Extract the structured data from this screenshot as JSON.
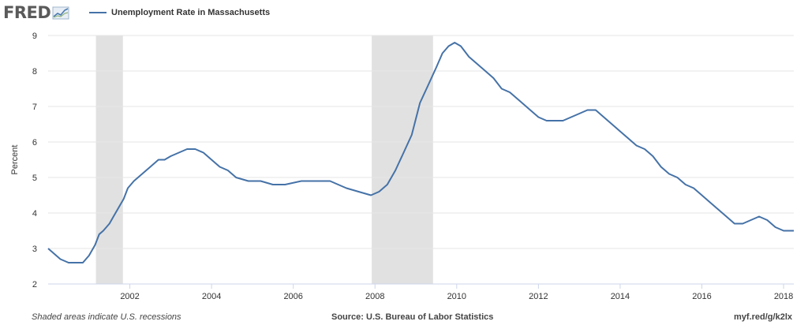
{
  "logo": {
    "text": "FRED",
    "icon": "fred-chart-icon"
  },
  "footer": {
    "note": "Shaded areas indicate U.S. recessions",
    "source": "Source: U.S. Bureau of Labor Statistics",
    "link": "myf.red/g/k2lx"
  },
  "colors": {
    "line": "#4572a7",
    "recession": "#e1e1e1",
    "grid": "#e6e6e6"
  },
  "chart_data": {
    "type": "line",
    "title": "",
    "xlabel": "",
    "ylabel": "Percent",
    "xlim": [
      2000.0,
      2018.25
    ],
    "ylim": [
      2,
      9
    ],
    "yticks": [
      2,
      3,
      4,
      5,
      6,
      7,
      8,
      9
    ],
    "xticks": [
      "2002",
      "2004",
      "2006",
      "2008",
      "2010",
      "2012",
      "2014",
      "2016",
      "2018"
    ],
    "grid": true,
    "legend": "top-left",
    "recessions": [
      [
        2001.17,
        2001.83
      ],
      [
        2007.92,
        2009.42
      ]
    ],
    "series": [
      {
        "name": "Unemployment Rate in Massachusetts",
        "x": [
          2000.0,
          2000.3,
          2000.5,
          2000.7,
          2000.85,
          2001.0,
          2001.15,
          2001.25,
          2001.35,
          2001.5,
          2001.6,
          2001.7,
          2001.85,
          2001.95,
          2002.1,
          2002.3,
          2002.5,
          2002.7,
          2002.85,
          2003.0,
          2003.2,
          2003.4,
          2003.6,
          2003.8,
          2004.0,
          2004.2,
          2004.4,
          2004.6,
          2004.9,
          2005.2,
          2005.5,
          2005.8,
          2006.2,
          2006.6,
          2006.9,
          2007.1,
          2007.3,
          2007.6,
          2007.9,
          2008.1,
          2008.3,
          2008.5,
          2008.7,
          2008.9,
          2009.1,
          2009.3,
          2009.5,
          2009.65,
          2009.8,
          2009.95,
          2010.1,
          2010.3,
          2010.5,
          2010.7,
          2010.9,
          2011.1,
          2011.3,
          2011.6,
          2011.8,
          2012.0,
          2012.2,
          2012.4,
          2012.6,
          2012.8,
          2013.0,
          2013.2,
          2013.4,
          2013.6,
          2013.8,
          2014.0,
          2014.2,
          2014.4,
          2014.6,
          2014.8,
          2015.0,
          2015.2,
          2015.4,
          2015.6,
          2015.8,
          2016.0,
          2016.2,
          2016.4,
          2016.6,
          2016.8,
          2017.0,
          2017.2,
          2017.4,
          2017.6,
          2017.8,
          2018.0,
          2018.25
        ],
        "y": [
          3.0,
          2.7,
          2.6,
          2.6,
          2.6,
          2.8,
          3.1,
          3.4,
          3.5,
          3.7,
          3.9,
          4.1,
          4.4,
          4.7,
          4.9,
          5.1,
          5.3,
          5.5,
          5.5,
          5.6,
          5.7,
          5.8,
          5.8,
          5.7,
          5.5,
          5.3,
          5.2,
          5.0,
          4.9,
          4.9,
          4.8,
          4.8,
          4.9,
          4.9,
          4.9,
          4.8,
          4.7,
          4.6,
          4.5,
          4.6,
          4.8,
          5.2,
          5.7,
          6.2,
          7.1,
          7.6,
          8.1,
          8.5,
          8.7,
          8.8,
          8.7,
          8.4,
          8.2,
          8.0,
          7.8,
          7.5,
          7.4,
          7.1,
          6.9,
          6.7,
          6.6,
          6.6,
          6.6,
          6.7,
          6.8,
          6.9,
          6.9,
          6.7,
          6.5,
          6.3,
          6.1,
          5.9,
          5.8,
          5.6,
          5.3,
          5.1,
          5.0,
          4.8,
          4.7,
          4.5,
          4.3,
          4.1,
          3.9,
          3.7,
          3.7,
          3.8,
          3.9,
          3.8,
          3.6,
          3.5,
          3.5
        ]
      }
    ]
  }
}
